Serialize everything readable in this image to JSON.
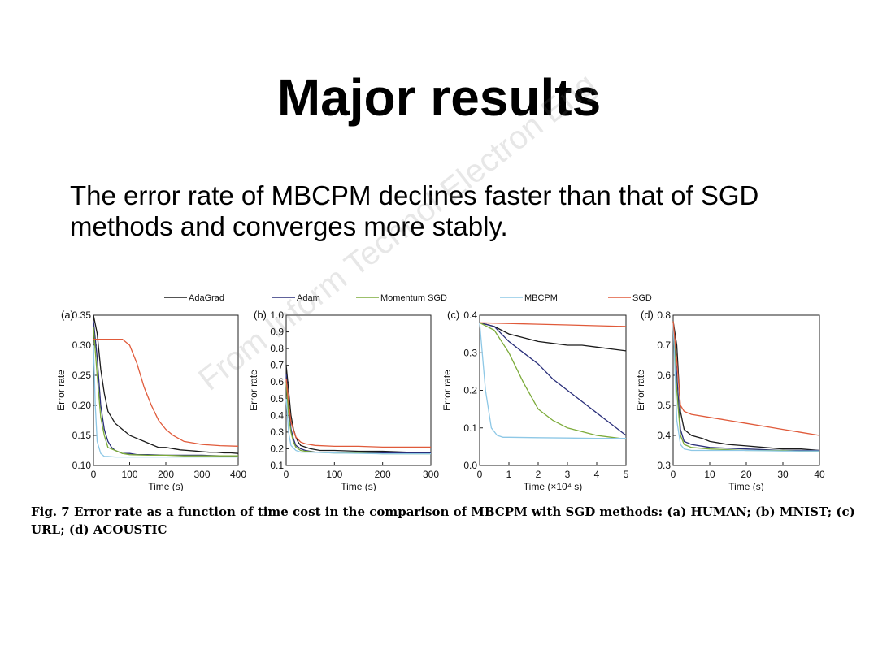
{
  "slide": {
    "title": "Major results",
    "subtitle": "The error rate of MBCPM declines faster than that of SGD methods and converges more stably.",
    "caption": "Fig. 7  Error rate as a function of time cost in the comparison of MBCPM with SGD methods: (a) HUMAN; (b) MNIST; (c) URL; (d) ACOUSTIC",
    "watermark": "From Inform Technol Electron Eng"
  },
  "colors": {
    "AdaGrad": "#1a1a1a",
    "Adam": "#2a2f7a",
    "Momentum SGD": "#7cab3a",
    "MBCPM": "#8ec8e6",
    "SGD": "#e05a3a"
  },
  "chart_data": [
    {
      "type": "line",
      "panel": "(a)",
      "xlabel": "Time (s)",
      "ylabel": "Error rate",
      "xlim": [
        0,
        400
      ],
      "ylim": [
        0.1,
        0.35
      ],
      "xticks": [
        "0",
        "100",
        "200",
        "300",
        "400"
      ],
      "yticks": [
        "0.10",
        "0.15",
        "0.20",
        "0.25",
        "0.30",
        "0.35"
      ],
      "legend": [
        {
          "label": "AdaGrad",
          "series": "AdaGrad"
        },
        {
          "label": "Adam",
          "series": "Adam"
        }
      ],
      "series": [
        {
          "name": "AdaGrad",
          "x": [
            0,
            10,
            20,
            30,
            40,
            50,
            60,
            70,
            80,
            90,
            100,
            120,
            140,
            160,
            180,
            200,
            220,
            240,
            260,
            280,
            300,
            320,
            340,
            360,
            380,
            400
          ],
          "y": [
            0.35,
            0.32,
            0.26,
            0.22,
            0.19,
            0.18,
            0.17,
            0.165,
            0.16,
            0.155,
            0.15,
            0.145,
            0.14,
            0.135,
            0.13,
            0.13,
            0.128,
            0.126,
            0.125,
            0.124,
            0.123,
            0.122,
            0.122,
            0.121,
            0.121,
            0.12
          ]
        },
        {
          "name": "Adam",
          "x": [
            0,
            10,
            20,
            30,
            40,
            50,
            60,
            80,
            100,
            120,
            150,
            200,
            250,
            300,
            350,
            400
          ],
          "y": [
            0.34,
            0.28,
            0.2,
            0.16,
            0.14,
            0.13,
            0.125,
            0.12,
            0.12,
            0.118,
            0.118,
            0.117,
            0.117,
            0.117,
            0.116,
            0.116
          ]
        },
        {
          "name": "Momentum SGD",
          "x": [
            0,
            10,
            20,
            30,
            40,
            60,
            80,
            100,
            150,
            200,
            250,
            300,
            350,
            400
          ],
          "y": [
            0.33,
            0.25,
            0.18,
            0.15,
            0.13,
            0.125,
            0.12,
            0.118,
            0.117,
            0.117,
            0.116,
            0.116,
            0.116,
            0.116
          ]
        },
        {
          "name": "MBCPM",
          "x": [
            0,
            5,
            10,
            20,
            30,
            40,
            60,
            100,
            200,
            300,
            400
          ],
          "y": [
            0.3,
            0.2,
            0.14,
            0.12,
            0.115,
            0.115,
            0.114,
            0.114,
            0.114,
            0.114,
            0.114
          ]
        },
        {
          "name": "SGD",
          "x": [
            0,
            40,
            80,
            100,
            120,
            140,
            160,
            180,
            200,
            220,
            250,
            300,
            350,
            400
          ],
          "y": [
            0.31,
            0.31,
            0.31,
            0.3,
            0.27,
            0.23,
            0.2,
            0.175,
            0.16,
            0.15,
            0.14,
            0.135,
            0.133,
            0.132
          ]
        }
      ]
    },
    {
      "type": "line",
      "panel": "(b)",
      "xlabel": "Time (s)",
      "ylabel": "Error rate",
      "xlim": [
        0,
        300
      ],
      "ylim": [
        0.1,
        1.0
      ],
      "xticks": [
        "0",
        "100",
        "200",
        "300"
      ],
      "yticks": [
        "0.1",
        "0.2",
        "0.3",
        "0.4",
        "0.5",
        "0.6",
        "0.7",
        "0.8",
        "0.9",
        "1.0"
      ],
      "legend": [
        {
          "label": "Momentum SGD",
          "series": "Momentum SGD"
        }
      ],
      "series": [
        {
          "name": "AdaGrad",
          "x": [
            0,
            5,
            10,
            15,
            20,
            25,
            30,
            40,
            50,
            70,
            100,
            150,
            200,
            250,
            300
          ],
          "y": [
            0.7,
            0.55,
            0.4,
            0.32,
            0.27,
            0.24,
            0.22,
            0.21,
            0.2,
            0.19,
            0.19,
            0.185,
            0.185,
            0.18,
            0.18
          ]
        },
        {
          "name": "Adam",
          "x": [
            0,
            5,
            10,
            15,
            20,
            30,
            40,
            60,
            100,
            150,
            200,
            250,
            300
          ],
          "y": [
            0.65,
            0.45,
            0.32,
            0.26,
            0.22,
            0.2,
            0.19,
            0.18,
            0.18,
            0.175,
            0.175,
            0.175,
            0.175
          ]
        },
        {
          "name": "Momentum SGD",
          "x": [
            0,
            5,
            10,
            15,
            20,
            30,
            40,
            60,
            100,
            150,
            200,
            250,
            300
          ],
          "y": [
            0.6,
            0.4,
            0.3,
            0.24,
            0.21,
            0.19,
            0.185,
            0.18,
            0.175,
            0.175,
            0.17,
            0.17,
            0.17
          ]
        },
        {
          "name": "MBCPM",
          "x": [
            0,
            5,
            10,
            20,
            30,
            50,
            100,
            200,
            300
          ],
          "y": [
            0.5,
            0.3,
            0.22,
            0.19,
            0.18,
            0.18,
            0.175,
            0.17,
            0.17
          ]
        },
        {
          "name": "SGD",
          "x": [
            0,
            5,
            10,
            20,
            30,
            40,
            60,
            100,
            150,
            200,
            250,
            300
          ],
          "y": [
            0.62,
            0.48,
            0.36,
            0.27,
            0.24,
            0.23,
            0.22,
            0.215,
            0.215,
            0.21,
            0.21,
            0.21
          ]
        }
      ]
    },
    {
      "type": "line",
      "panel": "(c)",
      "xlabel": "Time (×10⁴ s)",
      "ylabel": "Error rate",
      "xlim": [
        0,
        5
      ],
      "ylim": [
        0.0,
        0.4
      ],
      "xticks": [
        "0",
        "1",
        "2",
        "3",
        "4",
        "5"
      ],
      "yticks": [
        "0.0",
        "0.1",
        "0.2",
        "0.3",
        "0.4"
      ],
      "legend": [
        {
          "label": "MBCPM",
          "series": "MBCPM"
        }
      ],
      "series": [
        {
          "name": "AdaGrad",
          "x": [
            0,
            0.5,
            1,
            1.5,
            2,
            2.5,
            3,
            3.5,
            4,
            4.5,
            5
          ],
          "y": [
            0.38,
            0.37,
            0.35,
            0.34,
            0.33,
            0.325,
            0.32,
            0.32,
            0.315,
            0.31,
            0.305
          ]
        },
        {
          "name": "Adam",
          "x": [
            0,
            0.5,
            1,
            1.5,
            2,
            2.5,
            3,
            3.5,
            4,
            4.5,
            5
          ],
          "y": [
            0.38,
            0.37,
            0.33,
            0.3,
            0.27,
            0.23,
            0.2,
            0.17,
            0.14,
            0.11,
            0.08
          ]
        },
        {
          "name": "Momentum SGD",
          "x": [
            0,
            0.5,
            1,
            1.5,
            2,
            2.5,
            3,
            3.5,
            4,
            4.5,
            5
          ],
          "y": [
            0.38,
            0.36,
            0.3,
            0.22,
            0.15,
            0.12,
            0.1,
            0.09,
            0.08,
            0.075,
            0.07
          ]
        },
        {
          "name": "MBCPM",
          "x": [
            0,
            0.2,
            0.4,
            0.6,
            0.8,
            1,
            2,
            3,
            4,
            5
          ],
          "y": [
            0.38,
            0.2,
            0.1,
            0.08,
            0.075,
            0.075,
            0.074,
            0.073,
            0.072,
            0.072
          ]
        },
        {
          "name": "SGD",
          "x": [
            0,
            1,
            2,
            3,
            4,
            5
          ],
          "y": [
            0.38,
            0.378,
            0.376,
            0.374,
            0.372,
            0.37
          ]
        }
      ]
    },
    {
      "type": "line",
      "panel": "(d)",
      "xlabel": "Time (s)",
      "ylabel": "Error rate",
      "xlim": [
        0,
        40
      ],
      "ylim": [
        0.3,
        0.8
      ],
      "xticks": [
        "0",
        "10",
        "20",
        "30",
        "40"
      ],
      "yticks": [
        "0.3",
        "0.4",
        "0.5",
        "0.6",
        "0.7",
        "0.8"
      ],
      "legend": [
        {
          "label": "SGD",
          "series": "SGD"
        }
      ],
      "series": [
        {
          "name": "AdaGrad",
          "x": [
            0,
            1,
            2,
            3,
            5,
            8,
            10,
            15,
            20,
            25,
            30,
            35,
            40
          ],
          "y": [
            0.78,
            0.7,
            0.48,
            0.42,
            0.4,
            0.39,
            0.38,
            0.37,
            0.365,
            0.36,
            0.355,
            0.355,
            0.35
          ]
        },
        {
          "name": "Adam",
          "x": [
            0,
            1,
            2,
            3,
            5,
            10,
            20,
            30,
            40
          ],
          "y": [
            0.78,
            0.6,
            0.42,
            0.38,
            0.37,
            0.36,
            0.355,
            0.35,
            0.35
          ]
        },
        {
          "name": "Momentum SGD",
          "x": [
            0,
            1,
            2,
            3,
            5,
            10,
            20,
            30,
            40
          ],
          "y": [
            0.78,
            0.55,
            0.4,
            0.37,
            0.36,
            0.355,
            0.35,
            0.35,
            0.345
          ]
        },
        {
          "name": "MBCPM",
          "x": [
            0,
            1,
            2,
            3,
            5,
            10,
            20,
            30,
            40
          ],
          "y": [
            0.78,
            0.45,
            0.37,
            0.355,
            0.35,
            0.35,
            0.35,
            0.348,
            0.348
          ]
        },
        {
          "name": "SGD",
          "x": [
            0,
            1,
            2,
            3,
            5,
            10,
            15,
            20,
            25,
            30,
            35,
            40
          ],
          "y": [
            0.78,
            0.65,
            0.5,
            0.48,
            0.47,
            0.46,
            0.45,
            0.44,
            0.43,
            0.42,
            0.41,
            0.4
          ]
        }
      ]
    }
  ]
}
